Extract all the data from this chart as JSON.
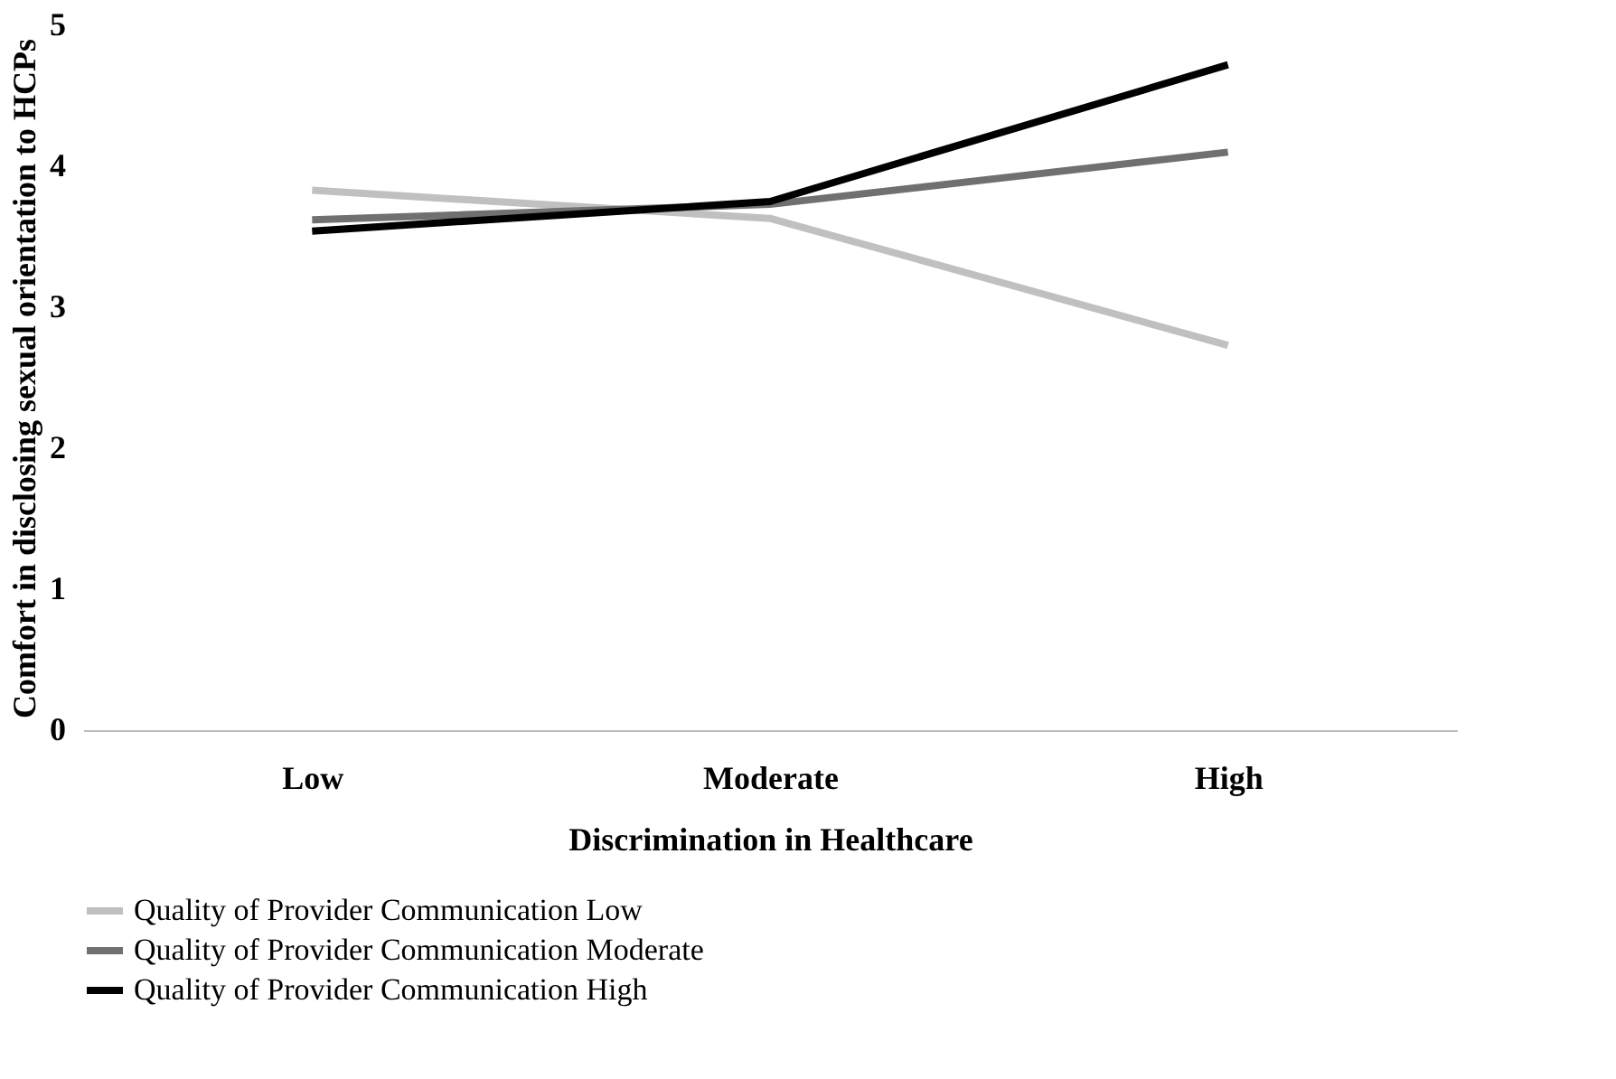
{
  "chart_data": {
    "type": "line",
    "xlabel": "Discrimination  in Healthcare",
    "ylabel": "Comfort in disclosing sexual orientation to HCPs",
    "categories": [
      "Low",
      "Moderate",
      "High"
    ],
    "series": [
      {
        "name": "Quality of Provider Communication  Low",
        "color": "#c0c0c0",
        "values": [
          3.83,
          3.63,
          2.73
        ]
      },
      {
        "name": "Quality of Provider Communication  Moderate",
        "color": "#707070",
        "values": [
          3.62,
          3.73,
          4.1
        ]
      },
      {
        "name": "Quality of Provider Communication  High",
        "color": "#000000",
        "values": [
          3.54,
          3.75,
          4.72
        ]
      }
    ],
    "ylim": [
      0,
      5
    ],
    "yticks": [
      0,
      1,
      2,
      3,
      4,
      5
    ],
    "grid": false,
    "legend": "bottom",
    "marker": "none",
    "line_style": "solid"
  }
}
